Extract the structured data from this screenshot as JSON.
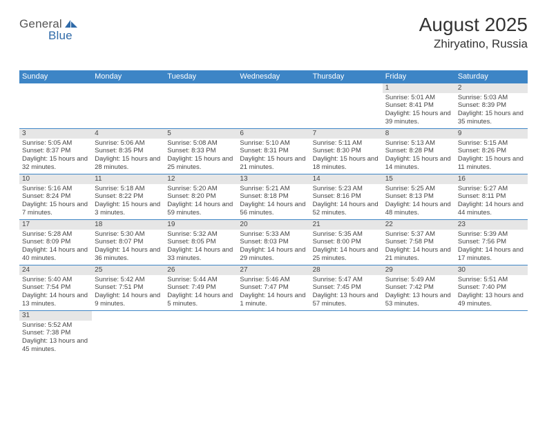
{
  "logo": {
    "general": "General",
    "blue": "Blue"
  },
  "title": "August 2025",
  "location": "Zhiryatino, Russia",
  "colors": {
    "header_bg": "#3d85c6",
    "header_fg": "#ffffff",
    "daynum_bg": "#e6e6e6",
    "border": "#3d85c6",
    "text": "#444444",
    "logo_gray": "#555555",
    "logo_blue": "#2f6aa8"
  },
  "day_headers": [
    "Sunday",
    "Monday",
    "Tuesday",
    "Wednesday",
    "Thursday",
    "Friday",
    "Saturday"
  ],
  "weeks": [
    [
      null,
      null,
      null,
      null,
      null,
      {
        "n": "1",
        "sr": "5:01 AM",
        "ss": "8:41 PM",
        "dl": "15 hours and 39 minutes."
      },
      {
        "n": "2",
        "sr": "5:03 AM",
        "ss": "8:39 PM",
        "dl": "15 hours and 35 minutes."
      }
    ],
    [
      {
        "n": "3",
        "sr": "5:05 AM",
        "ss": "8:37 PM",
        "dl": "15 hours and 32 minutes."
      },
      {
        "n": "4",
        "sr": "5:06 AM",
        "ss": "8:35 PM",
        "dl": "15 hours and 28 minutes."
      },
      {
        "n": "5",
        "sr": "5:08 AM",
        "ss": "8:33 PM",
        "dl": "15 hours and 25 minutes."
      },
      {
        "n": "6",
        "sr": "5:10 AM",
        "ss": "8:31 PM",
        "dl": "15 hours and 21 minutes."
      },
      {
        "n": "7",
        "sr": "5:11 AM",
        "ss": "8:30 PM",
        "dl": "15 hours and 18 minutes."
      },
      {
        "n": "8",
        "sr": "5:13 AM",
        "ss": "8:28 PM",
        "dl": "15 hours and 14 minutes."
      },
      {
        "n": "9",
        "sr": "5:15 AM",
        "ss": "8:26 PM",
        "dl": "15 hours and 11 minutes."
      }
    ],
    [
      {
        "n": "10",
        "sr": "5:16 AM",
        "ss": "8:24 PM",
        "dl": "15 hours and 7 minutes."
      },
      {
        "n": "11",
        "sr": "5:18 AM",
        "ss": "8:22 PM",
        "dl": "15 hours and 3 minutes."
      },
      {
        "n": "12",
        "sr": "5:20 AM",
        "ss": "8:20 PM",
        "dl": "14 hours and 59 minutes."
      },
      {
        "n": "13",
        "sr": "5:21 AM",
        "ss": "8:18 PM",
        "dl": "14 hours and 56 minutes."
      },
      {
        "n": "14",
        "sr": "5:23 AM",
        "ss": "8:16 PM",
        "dl": "14 hours and 52 minutes."
      },
      {
        "n": "15",
        "sr": "5:25 AM",
        "ss": "8:13 PM",
        "dl": "14 hours and 48 minutes."
      },
      {
        "n": "16",
        "sr": "5:27 AM",
        "ss": "8:11 PM",
        "dl": "14 hours and 44 minutes."
      }
    ],
    [
      {
        "n": "17",
        "sr": "5:28 AM",
        "ss": "8:09 PM",
        "dl": "14 hours and 40 minutes."
      },
      {
        "n": "18",
        "sr": "5:30 AM",
        "ss": "8:07 PM",
        "dl": "14 hours and 36 minutes."
      },
      {
        "n": "19",
        "sr": "5:32 AM",
        "ss": "8:05 PM",
        "dl": "14 hours and 33 minutes."
      },
      {
        "n": "20",
        "sr": "5:33 AM",
        "ss": "8:03 PM",
        "dl": "14 hours and 29 minutes."
      },
      {
        "n": "21",
        "sr": "5:35 AM",
        "ss": "8:00 PM",
        "dl": "14 hours and 25 minutes."
      },
      {
        "n": "22",
        "sr": "5:37 AM",
        "ss": "7:58 PM",
        "dl": "14 hours and 21 minutes."
      },
      {
        "n": "23",
        "sr": "5:39 AM",
        "ss": "7:56 PM",
        "dl": "14 hours and 17 minutes."
      }
    ],
    [
      {
        "n": "24",
        "sr": "5:40 AM",
        "ss": "7:54 PM",
        "dl": "14 hours and 13 minutes."
      },
      {
        "n": "25",
        "sr": "5:42 AM",
        "ss": "7:51 PM",
        "dl": "14 hours and 9 minutes."
      },
      {
        "n": "26",
        "sr": "5:44 AM",
        "ss": "7:49 PM",
        "dl": "14 hours and 5 minutes."
      },
      {
        "n": "27",
        "sr": "5:46 AM",
        "ss": "7:47 PM",
        "dl": "14 hours and 1 minute."
      },
      {
        "n": "28",
        "sr": "5:47 AM",
        "ss": "7:45 PM",
        "dl": "13 hours and 57 minutes."
      },
      {
        "n": "29",
        "sr": "5:49 AM",
        "ss": "7:42 PM",
        "dl": "13 hours and 53 minutes."
      },
      {
        "n": "30",
        "sr": "5:51 AM",
        "ss": "7:40 PM",
        "dl": "13 hours and 49 minutes."
      }
    ],
    [
      {
        "n": "31",
        "sr": "5:52 AM",
        "ss": "7:38 PM",
        "dl": "13 hours and 45 minutes."
      },
      null,
      null,
      null,
      null,
      null,
      null
    ]
  ],
  "labels": {
    "sunrise": "Sunrise:",
    "sunset": "Sunset:",
    "daylight": "Daylight:"
  }
}
